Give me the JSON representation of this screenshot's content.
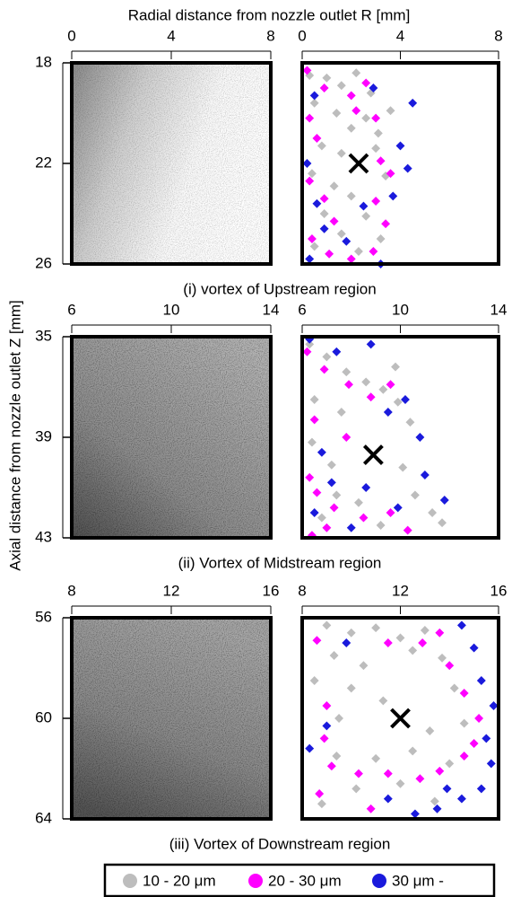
{
  "xlabel": "Radial distance from nozzle outlet R [mm]",
  "ylabel": "Axial distance from nozzle outlet Z [mm]",
  "legend": [
    {
      "name": "10 - 20 μm",
      "color": "#bdbdbd"
    },
    {
      "name": "20 - 30 μm",
      "color": "#ff00ff"
    },
    {
      "name": "30 μm -",
      "color": "#1a1adc"
    }
  ],
  "chart_data": [
    {
      "type": "scatter",
      "title": "(i) vortex of Upstream region",
      "xlim": [
        0,
        8
      ],
      "xticks": [
        0,
        4,
        8
      ],
      "ylim": [
        18,
        26
      ],
      "yticks": [
        18,
        22,
        26
      ],
      "y_inverted": true,
      "vortex_center": [
        2.3,
        22.0
      ],
      "series": [
        {
          "x": [
            0.3,
            1.0,
            1.6,
            2.2,
            2.8,
            0.5,
            1.4,
            2.0,
            2.6,
            3.1,
            0.8,
            1.6,
            3.0,
            0.4,
            1.3,
            3.4,
            2.0,
            0.9,
            2.6,
            1.6,
            0.5,
            2.3,
            3.2,
            3.6
          ],
          "values": [
            18.5,
            18.6,
            18.9,
            18.4,
            19.2,
            19.6,
            20.0,
            20.6,
            20.2,
            20.8,
            21.3,
            21.6,
            21.4,
            22.4,
            22.9,
            22.5,
            23.3,
            24.0,
            24.1,
            24.8,
            25.3,
            25.5,
            25.0,
            19.9
          ]
        },
        {
          "x": [
            0.2,
            0.9,
            2.0,
            2.6,
            0.3,
            2.2,
            0.6,
            3.2,
            3.6,
            0.3,
            0.9,
            3.0,
            1.3,
            3.4,
            0.4,
            1.1,
            2.0,
            2.9,
            3.0
          ],
          "values": [
            18.3,
            19.0,
            19.3,
            18.8,
            20.2,
            19.9,
            21.0,
            21.9,
            22.4,
            22.7,
            23.4,
            23.5,
            24.3,
            24.4,
            25.0,
            25.6,
            25.8,
            25.5,
            20.2
          ]
        },
        {
          "x": [
            0.5,
            2.9,
            4.0,
            4.3,
            0.2,
            0.6,
            3.7,
            2.5,
            0.9,
            0.3,
            1.8,
            3.2,
            4.5
          ],
          "values": [
            19.3,
            19.0,
            21.3,
            22.2,
            22.0,
            23.6,
            23.3,
            23.7,
            24.6,
            25.8,
            25.1,
            26.0,
            19.6
          ]
        }
      ]
    },
    {
      "type": "scatter",
      "title": "(ii) Vortex of Midstream region",
      "xlim": [
        6,
        14
      ],
      "xticks": [
        6,
        10,
        14
      ],
      "ylim": [
        35,
        43
      ],
      "yticks": [
        35,
        39,
        43
      ],
      "y_inverted": true,
      "vortex_center": [
        8.9,
        39.7
      ],
      "series": [
        {
          "x": [
            6.3,
            7.0,
            7.8,
            8.6,
            9.3,
            6.5,
            7.6,
            9.9,
            10.4,
            6.4,
            10.1,
            7.4,
            8.3,
            10.6,
            11.3,
            9.2,
            6.8,
            11.7,
            9.8,
            7.2
          ],
          "values": [
            35.3,
            35.8,
            36.4,
            36.8,
            37.1,
            37.5,
            38.0,
            37.6,
            38.4,
            39.2,
            40.2,
            41.3,
            41.6,
            41.3,
            42.0,
            42.5,
            42.2,
            42.4,
            36.2,
            40.1
          ]
        },
        {
          "x": [
            6.2,
            6.9,
            7.9,
            8.8,
            9.6,
            6.5,
            6.3,
            6.6,
            7.3,
            8.5,
            9.6,
            10.3,
            7.0,
            6.4,
            7.8
          ],
          "values": [
            35.6,
            36.3,
            36.9,
            37.4,
            36.9,
            38.3,
            40.6,
            41.2,
            41.8,
            42.2,
            42.0,
            42.7,
            42.6,
            42.9,
            39.0
          ]
        },
        {
          "x": [
            6.3,
            7.4,
            8.8,
            9.5,
            10.2,
            10.8,
            11.0,
            11.8,
            6.8,
            7.2,
            8.6,
            9.9,
            6.5,
            8.0
          ],
          "values": [
            35.1,
            35.6,
            35.3,
            38.0,
            37.5,
            39.0,
            40.5,
            41.5,
            39.6,
            40.8,
            41.0,
            41.8,
            42.0,
            42.6
          ]
        }
      ]
    },
    {
      "type": "scatter",
      "title": "(iii) Vortex of Downstream region",
      "xlim": [
        8,
        16
      ],
      "xticks": [
        8,
        12,
        16
      ],
      "ylim": [
        56,
        64
      ],
      "yticks": [
        56,
        60,
        64
      ],
      "y_inverted": true,
      "vortex_center": [
        12.0,
        60.0
      ],
      "series": [
        {
          "x": [
            9.0,
            10.0,
            11.0,
            12.0,
            13.0,
            9.3,
            10.5,
            12.5,
            13.7,
            8.5,
            10.0,
            14.2,
            9.5,
            11.3,
            13.2,
            14.6,
            9.4,
            11.0,
            12.5,
            14.0,
            10.2,
            12.0,
            13.4,
            8.8
          ],
          "values": [
            56.3,
            56.6,
            56.4,
            56.8,
            56.5,
            57.5,
            57.9,
            57.3,
            57.6,
            58.5,
            58.8,
            58.8,
            60.0,
            59.3,
            60.5,
            60.2,
            61.5,
            61.6,
            61.3,
            61.8,
            62.8,
            62.6,
            63.3,
            63.4
          ]
        },
        {
          "x": [
            8.6,
            11.5,
            12.9,
            13.6,
            14.0,
            14.6,
            15.2,
            15.0,
            9.0,
            8.9,
            9.2,
            10.3,
            11.5,
            12.8,
            13.6,
            8.7,
            10.8,
            14.6
          ],
          "values": [
            56.9,
            57.0,
            57.0,
            56.6,
            57.9,
            59.0,
            60.0,
            61.0,
            59.5,
            60.8,
            61.9,
            62.2,
            62.2,
            62.4,
            62.1,
            63.0,
            63.6,
            61.5
          ]
        },
        {
          "x": [
            9.8,
            14.5,
            15.0,
            15.3,
            15.8,
            15.5,
            15.7,
            15.3,
            14.5,
            13.5,
            12.6,
            9.0,
            8.3,
            11.5,
            13.9
          ],
          "values": [
            57.0,
            56.3,
            57.2,
            58.5,
            59.5,
            60.8,
            61.8,
            62.8,
            63.2,
            63.6,
            63.8,
            60.3,
            61.2,
            63.2,
            62.8
          ]
        }
      ]
    }
  ]
}
